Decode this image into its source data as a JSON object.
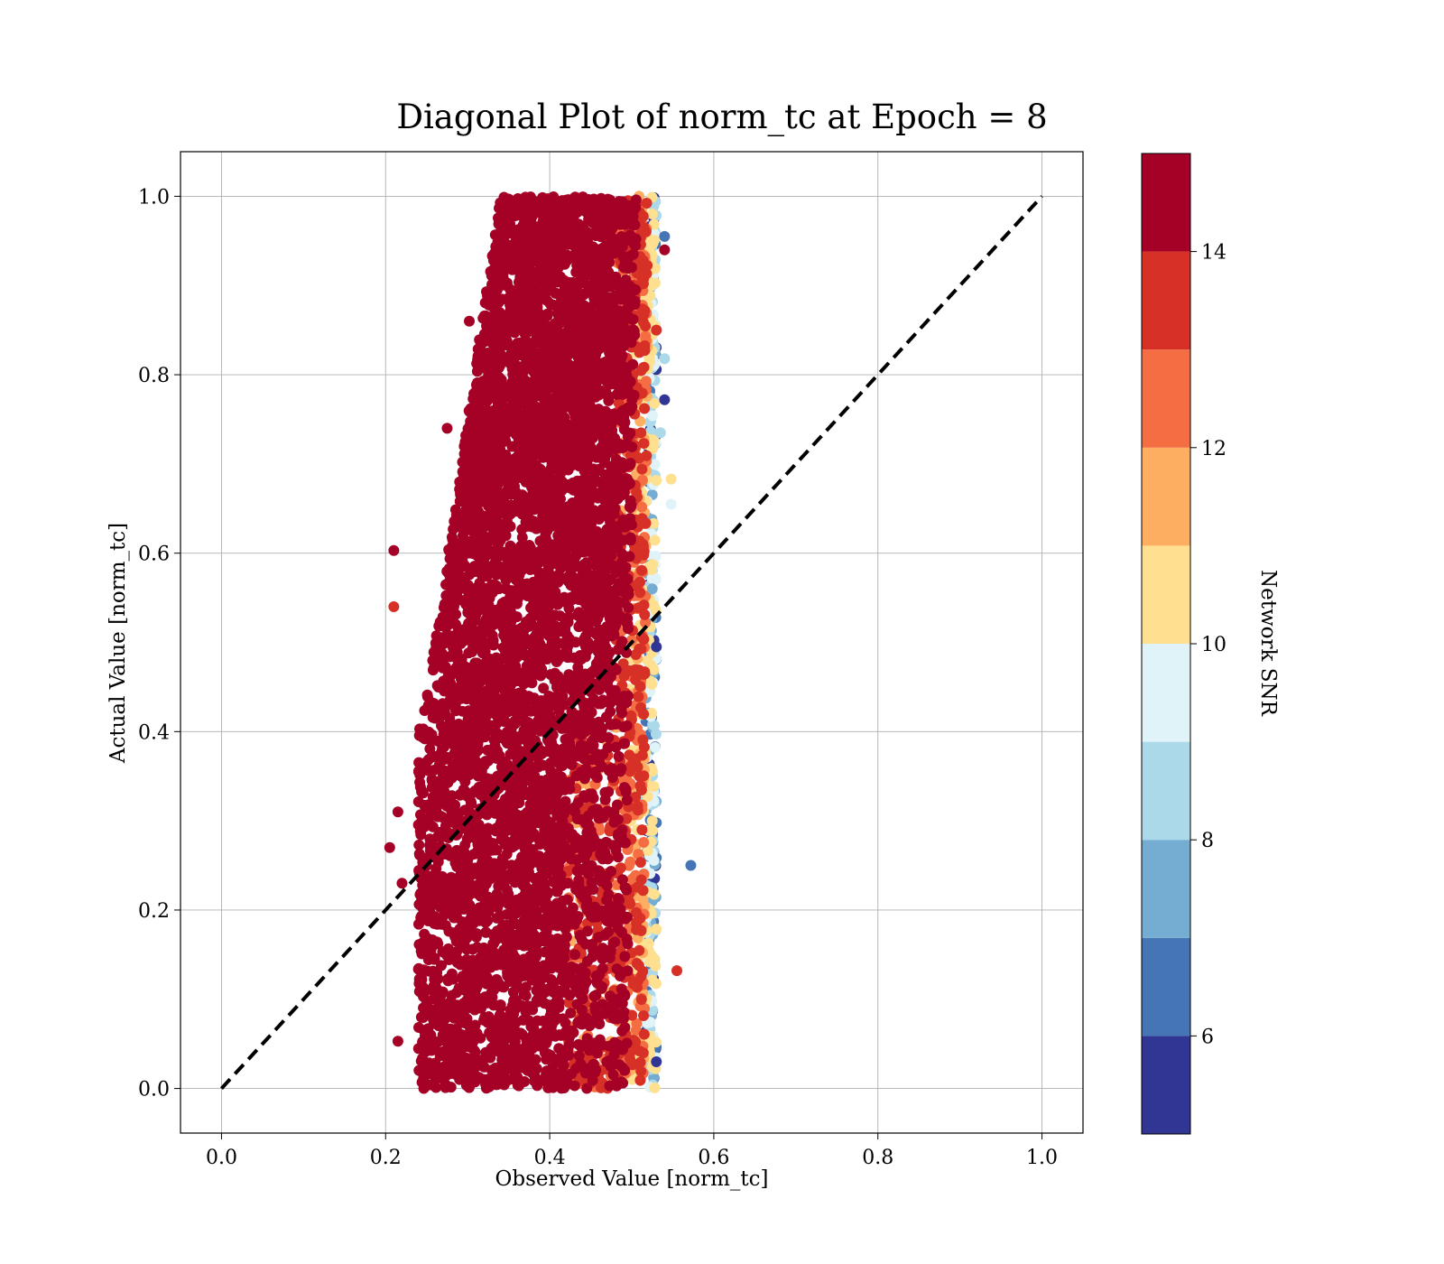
{
  "chart_data": {
    "type": "scatter",
    "title": "Diagonal Plot of norm_tc at Epoch = 8",
    "xlabel": "Observed Value [norm_tc]",
    "ylabel": "Actual Value [norm_tc]",
    "xlim": [
      -0.05,
      1.05
    ],
    "ylim": [
      -0.05,
      1.05
    ],
    "xticks": [
      0.0,
      0.2,
      0.4,
      0.6,
      0.8,
      1.0
    ],
    "yticks": [
      0.0,
      0.2,
      0.4,
      0.6,
      0.8,
      1.0
    ],
    "xtick_labels": [
      "0.0",
      "0.2",
      "0.4",
      "0.6",
      "0.8",
      "1.0"
    ],
    "ytick_labels": [
      "0.0",
      "0.2",
      "0.4",
      "0.6",
      "0.8",
      "1.0"
    ],
    "grid": true,
    "reference_line": {
      "x": [
        0.0,
        1.0
      ],
      "y": [
        0.0,
        1.0
      ],
      "style": "dashed",
      "color": "#000000"
    },
    "colorbar": {
      "label": "Network SNR",
      "range": [
        5,
        15
      ],
      "ticks": [
        6,
        8,
        10,
        12,
        14
      ],
      "tick_labels": [
        "6",
        "8",
        "10",
        "12",
        "14"
      ],
      "bins": [
        {
          "from": 5,
          "to": 6,
          "color": "#313695"
        },
        {
          "from": 6,
          "to": 7,
          "color": "#4575b4"
        },
        {
          "from": 7,
          "to": 8,
          "color": "#74add1"
        },
        {
          "from": 8,
          "to": 9,
          "color": "#abd9e9"
        },
        {
          "from": 9,
          "to": 10,
          "color": "#e0f3f8"
        },
        {
          "from": 10,
          "to": 11,
          "color": "#fee090"
        },
        {
          "from": 11,
          "to": 12,
          "color": "#fdae61"
        },
        {
          "from": 12,
          "to": 13,
          "color": "#f46d43"
        },
        {
          "from": 13,
          "to": 14,
          "color": "#d73027"
        },
        {
          "from": 14,
          "to": 15,
          "color": "#a50026"
        }
      ]
    },
    "series": [
      {
        "note_free": true,
        "points": [
          {
            "x": 0.21,
            "y": 0.603,
            "snr": 15
          },
          {
            "x": 0.21,
            "y": 0.54,
            "snr": 13.5
          },
          {
            "x": 0.205,
            "y": 0.27,
            "snr": 15
          },
          {
            "x": 0.215,
            "y": 0.31,
            "snr": 15
          },
          {
            "x": 0.22,
            "y": 0.23,
            "snr": 15
          },
          {
            "x": 0.215,
            "y": 0.053,
            "snr": 15
          },
          {
            "x": 0.275,
            "y": 0.74,
            "snr": 15
          },
          {
            "x": 0.302,
            "y": 0.86,
            "snr": 15
          },
          {
            "x": 0.572,
            "y": 0.25,
            "snr": 6.5
          },
          {
            "x": 0.555,
            "y": 0.132,
            "snr": 13.5
          },
          {
            "x": 0.548,
            "y": 0.683,
            "snr": 10.5
          },
          {
            "x": 0.548,
            "y": 0.655,
            "snr": 9.5
          },
          {
            "x": 0.54,
            "y": 0.772,
            "snr": 5.5
          },
          {
            "x": 0.54,
            "y": 0.94,
            "snr": 15
          },
          {
            "x": 0.54,
            "y": 0.955,
            "snr": 6.5
          },
          {
            "x": 0.54,
            "y": 0.818,
            "snr": 8.5
          },
          {
            "x": 0.535,
            "y": 0.735,
            "snr": 8.5
          },
          {
            "x": 0.53,
            "y": 0.85,
            "snr": 13.5
          },
          {
            "x": 0.53,
            "y": 0.495,
            "snr": 5.5
          },
          {
            "x": 0.53,
            "y": 0.03,
            "snr": 5.5
          },
          {
            "x": 0.525,
            "y": 0.56,
            "snr": 7.5
          }
        ]
      }
    ]
  }
}
